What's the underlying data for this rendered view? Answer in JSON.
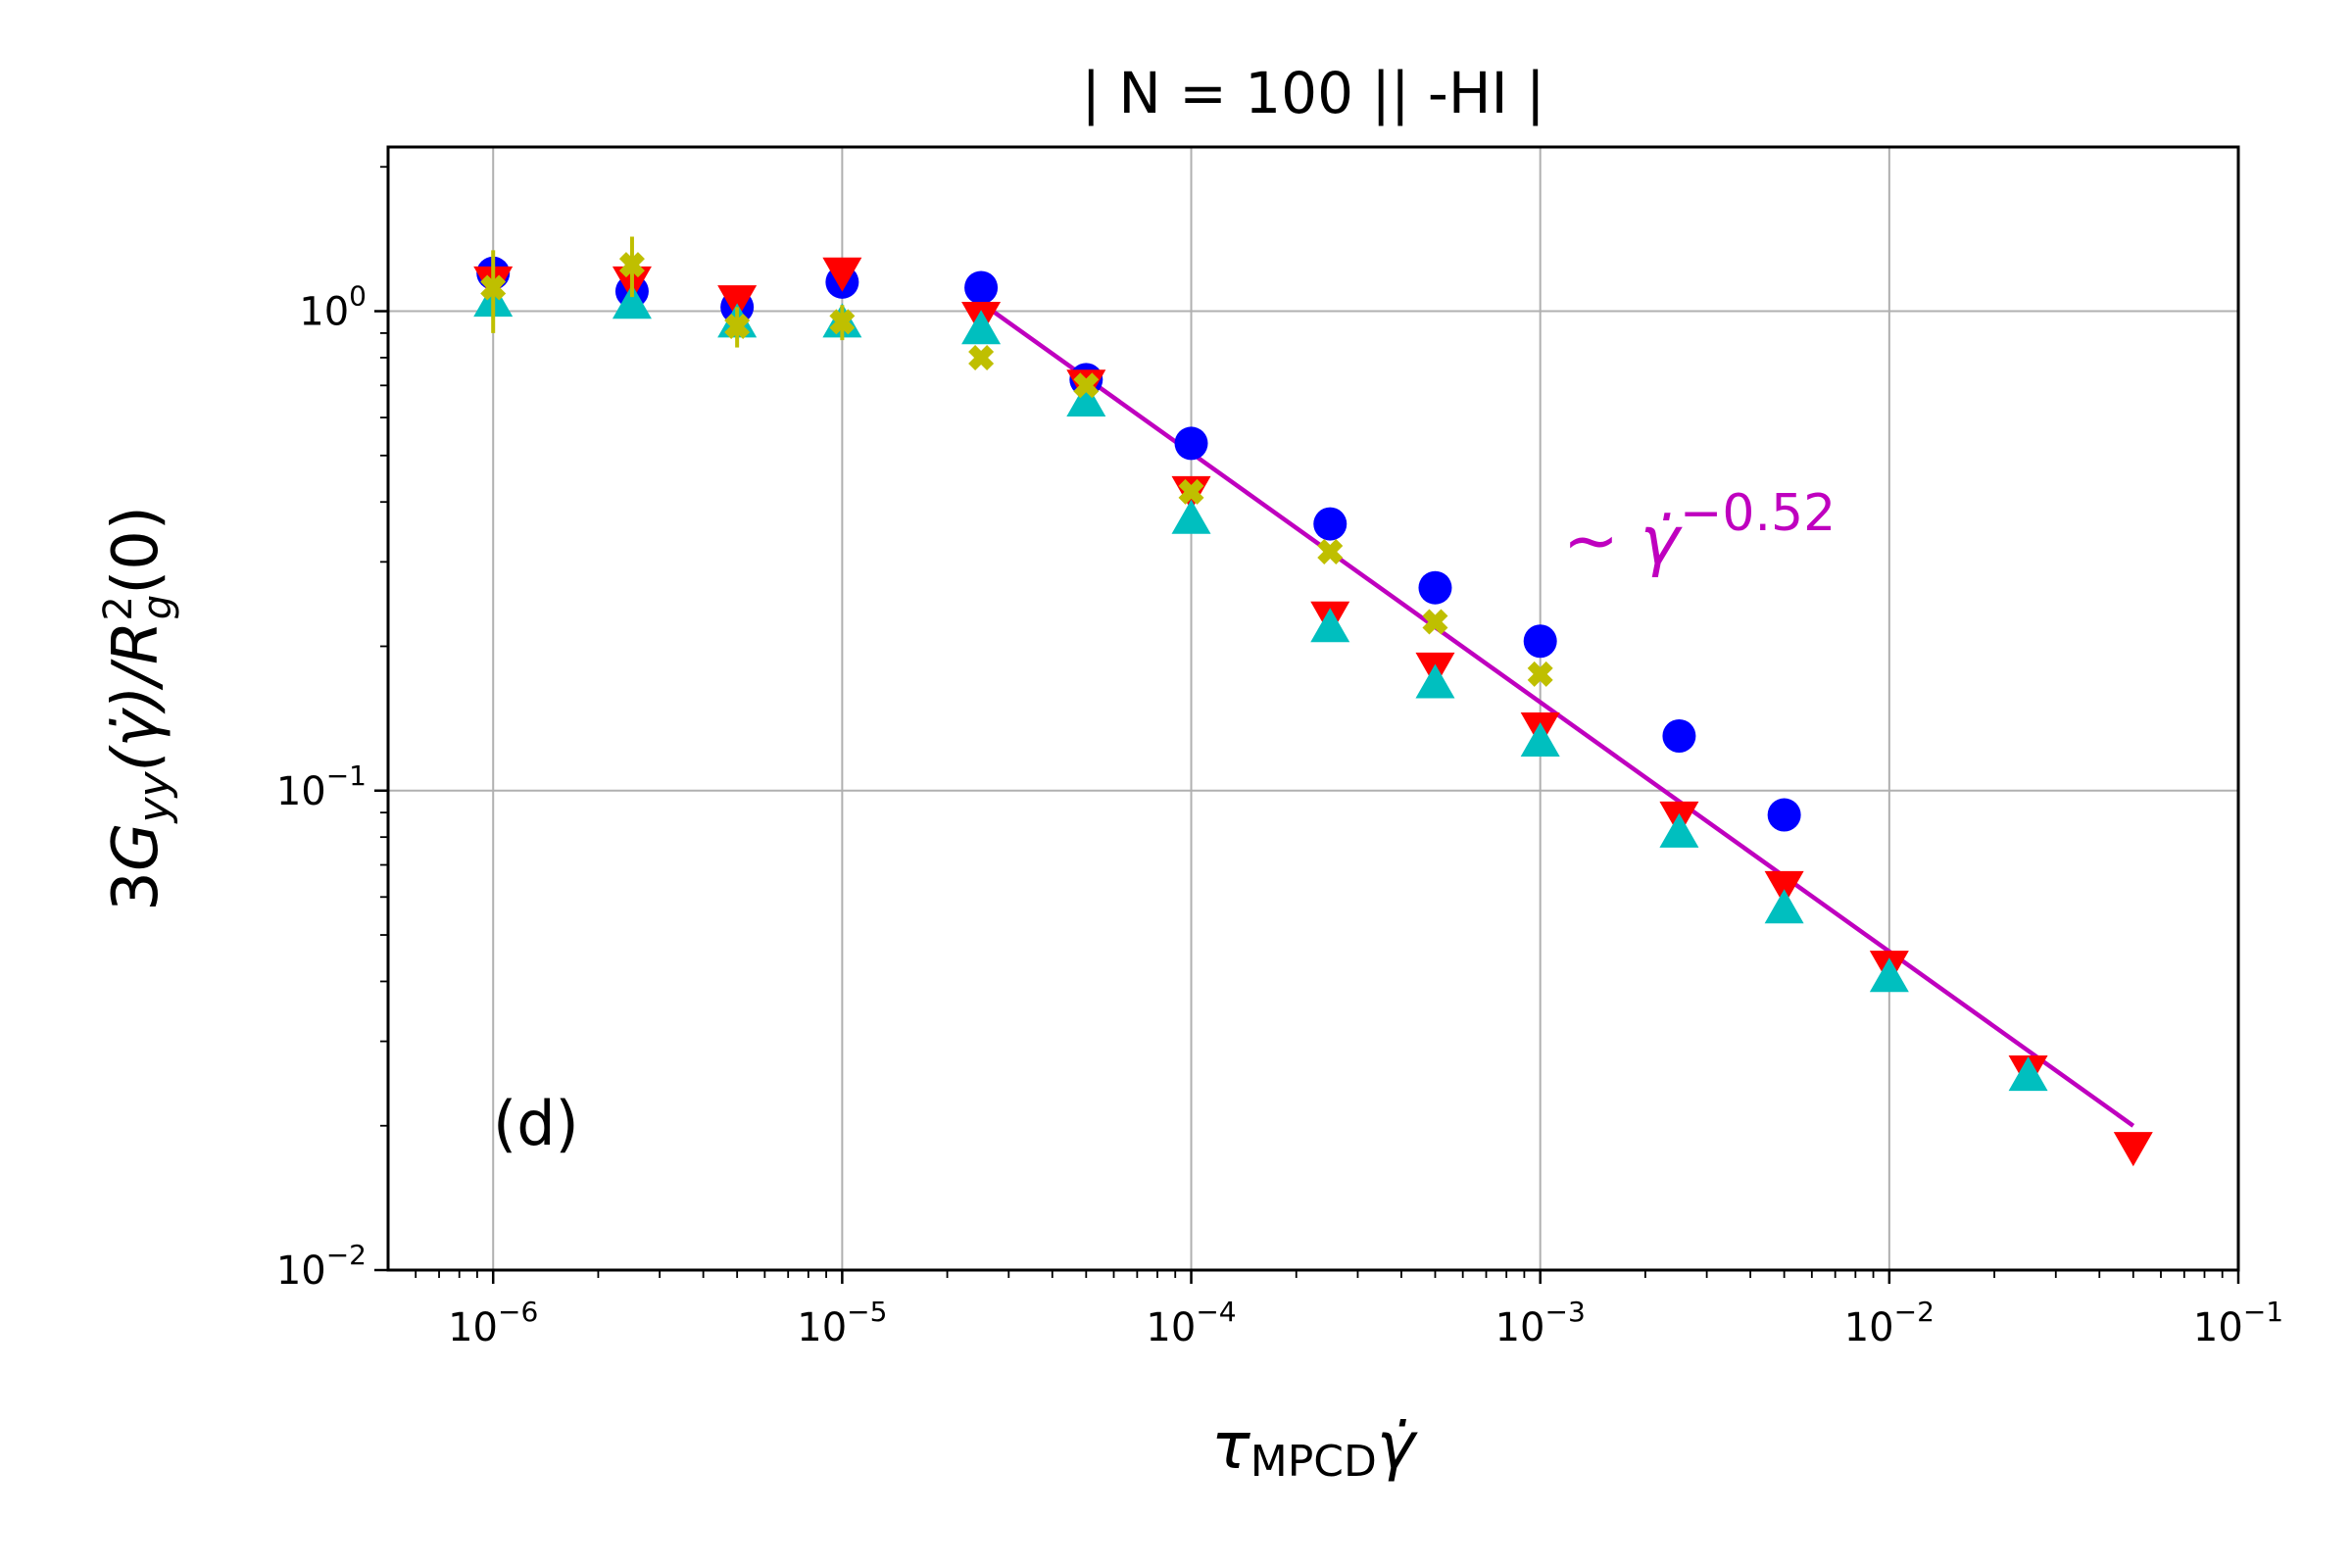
{
  "chart_data": {
    "type": "scatter",
    "title": "| N = 100 || -HI  |",
    "xlabel": {
      "main": "τ",
      "sub": "MPCD",
      "tail": "γ̇"
    },
    "ylabel": {
      "lead": "3",
      "g": "G",
      "gsub": "yy",
      "mid": "(γ̇)/",
      "r": "R",
      "rsup": "2",
      "rsub": "g",
      "tail": "(0)"
    },
    "xscale": "log",
    "yscale": "log",
    "xlim": [
      5e-07,
      0.1
    ],
    "ylim": [
      0.01,
      2.2
    ],
    "grid": true,
    "x_ticks": [
      {
        "value": 1e-06,
        "base": "10",
        "exp": "−6"
      },
      {
        "value": 1e-05,
        "base": "10",
        "exp": "−5"
      },
      {
        "value": 0.0001,
        "base": "10",
        "exp": "−4"
      },
      {
        "value": 0.001,
        "base": "10",
        "exp": "−3"
      },
      {
        "value": 0.01,
        "base": "10",
        "exp": "−2"
      },
      {
        "value": 0.1,
        "base": "10",
        "exp": "−1"
      }
    ],
    "y_ticks": [
      {
        "value": 1,
        "base": "10",
        "exp": "0"
      },
      {
        "value": 0.1,
        "base": "10",
        "exp": "−1"
      },
      {
        "value": 0.01,
        "base": "10",
        "exp": "−2"
      }
    ],
    "panel_label": "(d)",
    "fit": {
      "label_prefix": "~ ",
      "label_symbol": "γ̇",
      "label_exp": "−0.52",
      "exponent": -0.52,
      "x_start": 2.6e-05,
      "x_end": 0.05,
      "y_start": 1.02,
      "color": "#bf00bf"
    },
    "series": [
      {
        "name": "blue-circles",
        "marker": "circle",
        "color": "#0000ff",
        "points": [
          {
            "x": 1e-06,
            "y": 1.2
          },
          {
            "x": 2.5e-06,
            "y": 1.1
          },
          {
            "x": 5e-06,
            "y": 1.02
          },
          {
            "x": 1e-05,
            "y": 1.15
          },
          {
            "x": 2.5e-05,
            "y": 1.12
          },
          {
            "x": 5e-05,
            "y": 0.72
          },
          {
            "x": 0.0001,
            "y": 0.53
          },
          {
            "x": 0.00025,
            "y": 0.36
          },
          {
            "x": 0.0005,
            "y": 0.265
          },
          {
            "x": 0.001,
            "y": 0.205
          },
          {
            "x": 0.0025,
            "y": 0.13
          },
          {
            "x": 0.005,
            "y": 0.089
          }
        ]
      },
      {
        "name": "red-down-triangles",
        "marker": "triangle-down",
        "color": "#ff0000",
        "points": [
          {
            "x": 1e-06,
            "y": 1.15
          },
          {
            "x": 2.5e-06,
            "y": 1.15
          },
          {
            "x": 5e-06,
            "y": 1.05
          },
          {
            "x": 1e-05,
            "y": 1.2
          },
          {
            "x": 2.5e-05,
            "y": 0.97
          },
          {
            "x": 5e-05,
            "y": 0.7
          },
          {
            "x": 0.0001,
            "y": 0.42
          },
          {
            "x": 0.00025,
            "y": 0.23
          },
          {
            "x": 0.0005,
            "y": 0.18
          },
          {
            "x": 0.001,
            "y": 0.135
          },
          {
            "x": 0.0025,
            "y": 0.088
          },
          {
            "x": 0.005,
            "y": 0.063
          },
          {
            "x": 0.01,
            "y": 0.043
          },
          {
            "x": 0.025,
            "y": 0.026
          },
          {
            "x": 0.05,
            "y": 0.018
          }
        ]
      },
      {
        "name": "cyan-up-triangles",
        "marker": "triangle-up",
        "color": "#00bfbf",
        "points": [
          {
            "x": 1e-06,
            "y": 1.05
          },
          {
            "x": 2.5e-06,
            "y": 1.04
          },
          {
            "x": 5e-06,
            "y": 0.95
          },
          {
            "x": 1e-05,
            "y": 0.95
          },
          {
            "x": 2.5e-05,
            "y": 0.92
          },
          {
            "x": 5e-05,
            "y": 0.65
          },
          {
            "x": 0.0001,
            "y": 0.37
          },
          {
            "x": 0.00025,
            "y": 0.22
          },
          {
            "x": 0.0005,
            "y": 0.168
          },
          {
            "x": 0.001,
            "y": 0.127
          },
          {
            "x": 0.0025,
            "y": 0.082
          },
          {
            "x": 0.005,
            "y": 0.057
          },
          {
            "x": 0.01,
            "y": 0.041
          },
          {
            "x": 0.025,
            "y": 0.0255
          }
        ]
      },
      {
        "name": "olive-crosses",
        "marker": "x",
        "color": "#bfbf00",
        "points": [
          {
            "x": 1e-06,
            "y": 1.12,
            "err": 0.22
          },
          {
            "x": 2.5e-06,
            "y": 1.25,
            "err": 0.18
          },
          {
            "x": 5e-06,
            "y": 0.93,
            "err": 0.09
          },
          {
            "x": 1e-05,
            "y": 0.95,
            "err": 0.08
          },
          {
            "x": 2.5e-05,
            "y": 0.8
          },
          {
            "x": 5e-05,
            "y": 0.7
          },
          {
            "x": 0.0001,
            "y": 0.42
          },
          {
            "x": 0.00025,
            "y": 0.315
          },
          {
            "x": 0.0005,
            "y": 0.225
          },
          {
            "x": 0.001,
            "y": 0.175
          }
        ]
      }
    ]
  }
}
